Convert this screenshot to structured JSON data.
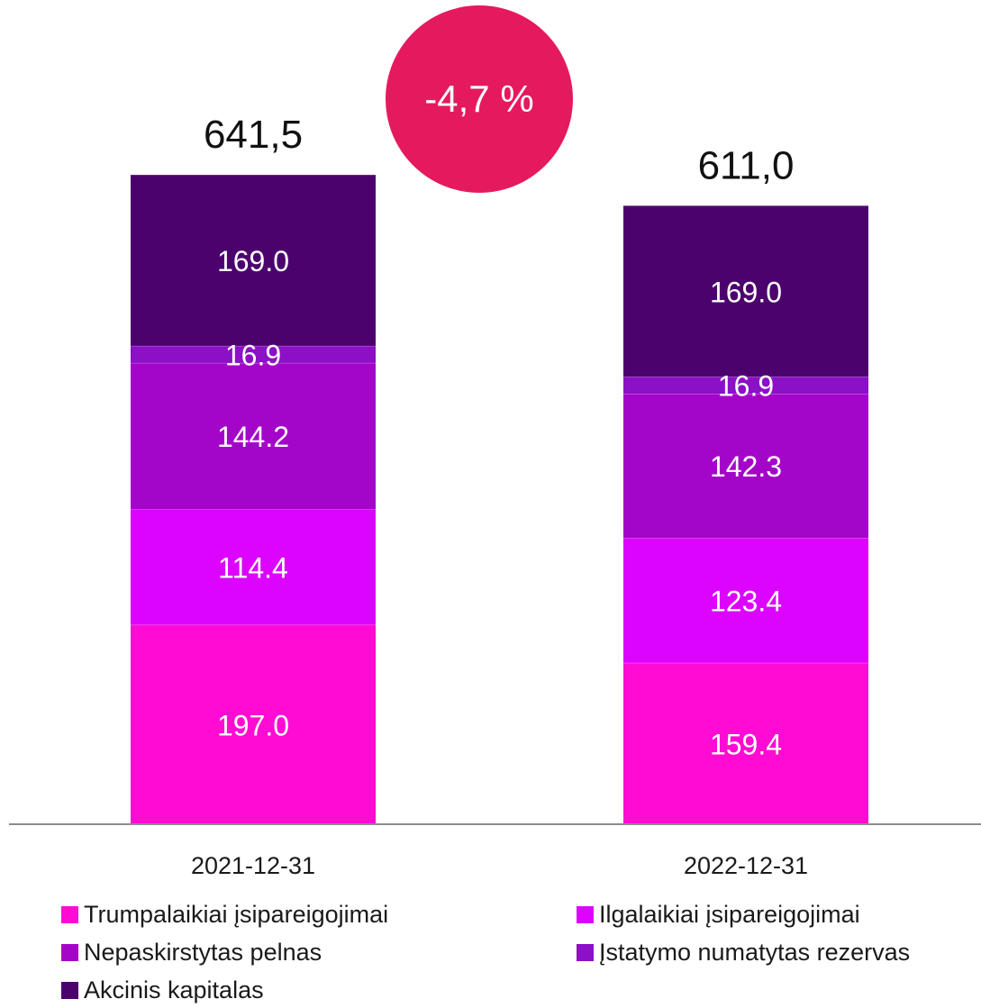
{
  "chart_data": {
    "type": "bar",
    "stacked": true,
    "categories": [
      "2021-12-31",
      "2022-12-31"
    ],
    "totals_labels": [
      "641,5",
      "611,0"
    ],
    "change_badge": {
      "text": "-4,7 %",
      "color": "#E5195E"
    },
    "series": [
      {
        "name": "Trumpalaikiai įsipareigojimai",
        "color": "#FF0BD3",
        "values": [
          197.0,
          159.4
        ],
        "labels": [
          "197.0",
          "159.4"
        ]
      },
      {
        "name": "Ilgalaikiai įsipareigojimai",
        "color": "#DC04FF",
        "values": [
          114.4,
          123.4
        ],
        "labels": [
          "114.4",
          "123.4"
        ]
      },
      {
        "name": "Nepaskirstytas pelnas",
        "color": "#A406C9",
        "values": [
          144.2,
          142.3
        ],
        "labels": [
          "144.2",
          "142.3"
        ]
      },
      {
        "name": "Įstatymo numatytas rezervas",
        "color": "#8C10C6",
        "values": [
          16.9,
          16.9
        ],
        "labels": [
          "16.9",
          "16.9"
        ]
      },
      {
        "name": "Akcinis kapitalas",
        "color": "#4C026D",
        "values": [
          169.0,
          169.0
        ],
        "labels": [
          "169.0",
          "169.0"
        ]
      }
    ],
    "legend_position": "bottom",
    "grid": false
  }
}
